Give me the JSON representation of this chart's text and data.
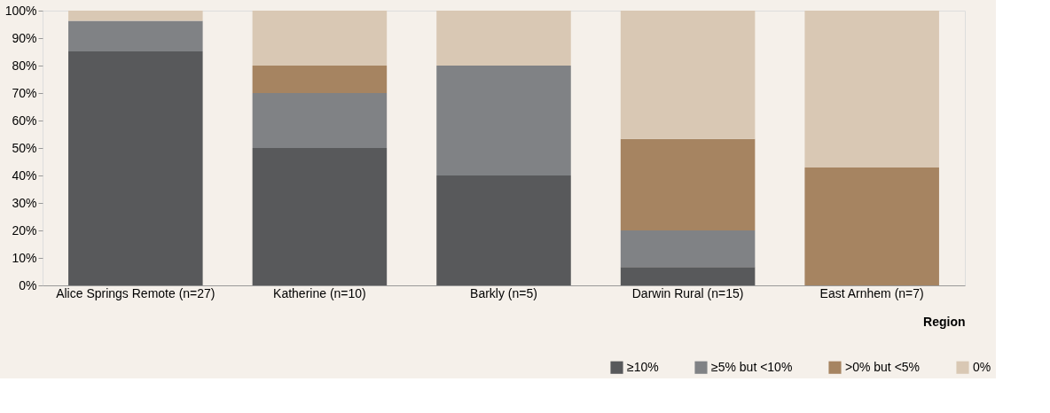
{
  "chart_data": {
    "type": "bar",
    "stacked": true,
    "xlabel": "Region",
    "categories": [
      "Alice Springs Remote (n=27)",
      "Katherine (n=10)",
      "Barkly (n=5)",
      "Darwin Rural (n=15)",
      "East Arnhem (n=7)"
    ],
    "series": [
      {
        "name": "≥10%",
        "color": "#58595b",
        "values": [
          85.2,
          50,
          40,
          6.7,
          0
        ]
      },
      {
        "name": "≥5% but <10%",
        "color": "#808285",
        "values": [
          11.1,
          20,
          40,
          13.3,
          0
        ]
      },
      {
        "name": ">0% but <5%",
        "color": "#a68461",
        "values": [
          0,
          10,
          0,
          33.3,
          42.9
        ]
      },
      {
        "name": "0%",
        "color": "#d9c8b4",
        "values": [
          3.7,
          20,
          20,
          46.7,
          57.1
        ]
      }
    ],
    "ylim": [
      0,
      100
    ],
    "yticks": [
      {
        "value": 0,
        "label": "0%"
      },
      {
        "value": 10,
        "label": "10%"
      },
      {
        "value": 20,
        "label": "20%"
      },
      {
        "value": 30,
        "label": "30%"
      },
      {
        "value": 40,
        "label": "40%"
      },
      {
        "value": 50,
        "label": "50%"
      },
      {
        "value": 60,
        "label": "60%"
      },
      {
        "value": 70,
        "label": "70%"
      },
      {
        "value": 80,
        "label": "80%"
      },
      {
        "value": 90,
        "label": "90%"
      },
      {
        "value": 100,
        "label": "100%"
      }
    ],
    "grid": false,
    "legend": "bottom right"
  }
}
